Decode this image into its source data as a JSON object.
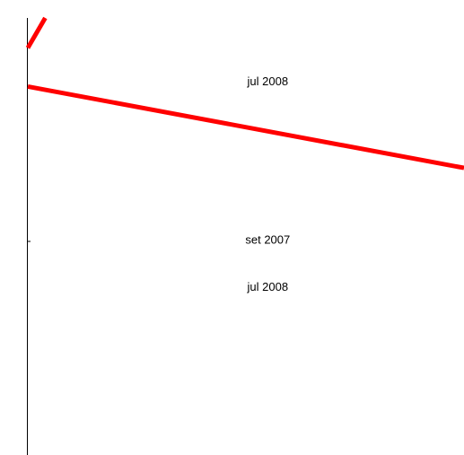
{
  "chart_data": {
    "type": "line",
    "title": "",
    "xlabel": "",
    "ylabel": "",
    "grid": false,
    "legend": "none",
    "series": [
      {
        "color": "#ff0000",
        "segments": [
          {
            "points": [
              [
                0.0,
                9.3
              ],
              [
                0.4,
                10.0
              ]
            ]
          },
          {
            "points": [
              [
                0.0,
                8.4
              ],
              [
                10.0,
                6.5
              ]
            ]
          }
        ]
      }
    ],
    "annotations": [
      {
        "text": "jul 2008",
        "x": 5.5,
        "y": 8.5
      },
      {
        "text": "set 2007",
        "x": 5.5,
        "y": 4.8
      },
      {
        "text": "jul 2008",
        "x": 5.5,
        "y": 3.7
      }
    ],
    "xlim": [
      0,
      10
    ],
    "ylim": [
      -0.2,
      10
    ]
  }
}
